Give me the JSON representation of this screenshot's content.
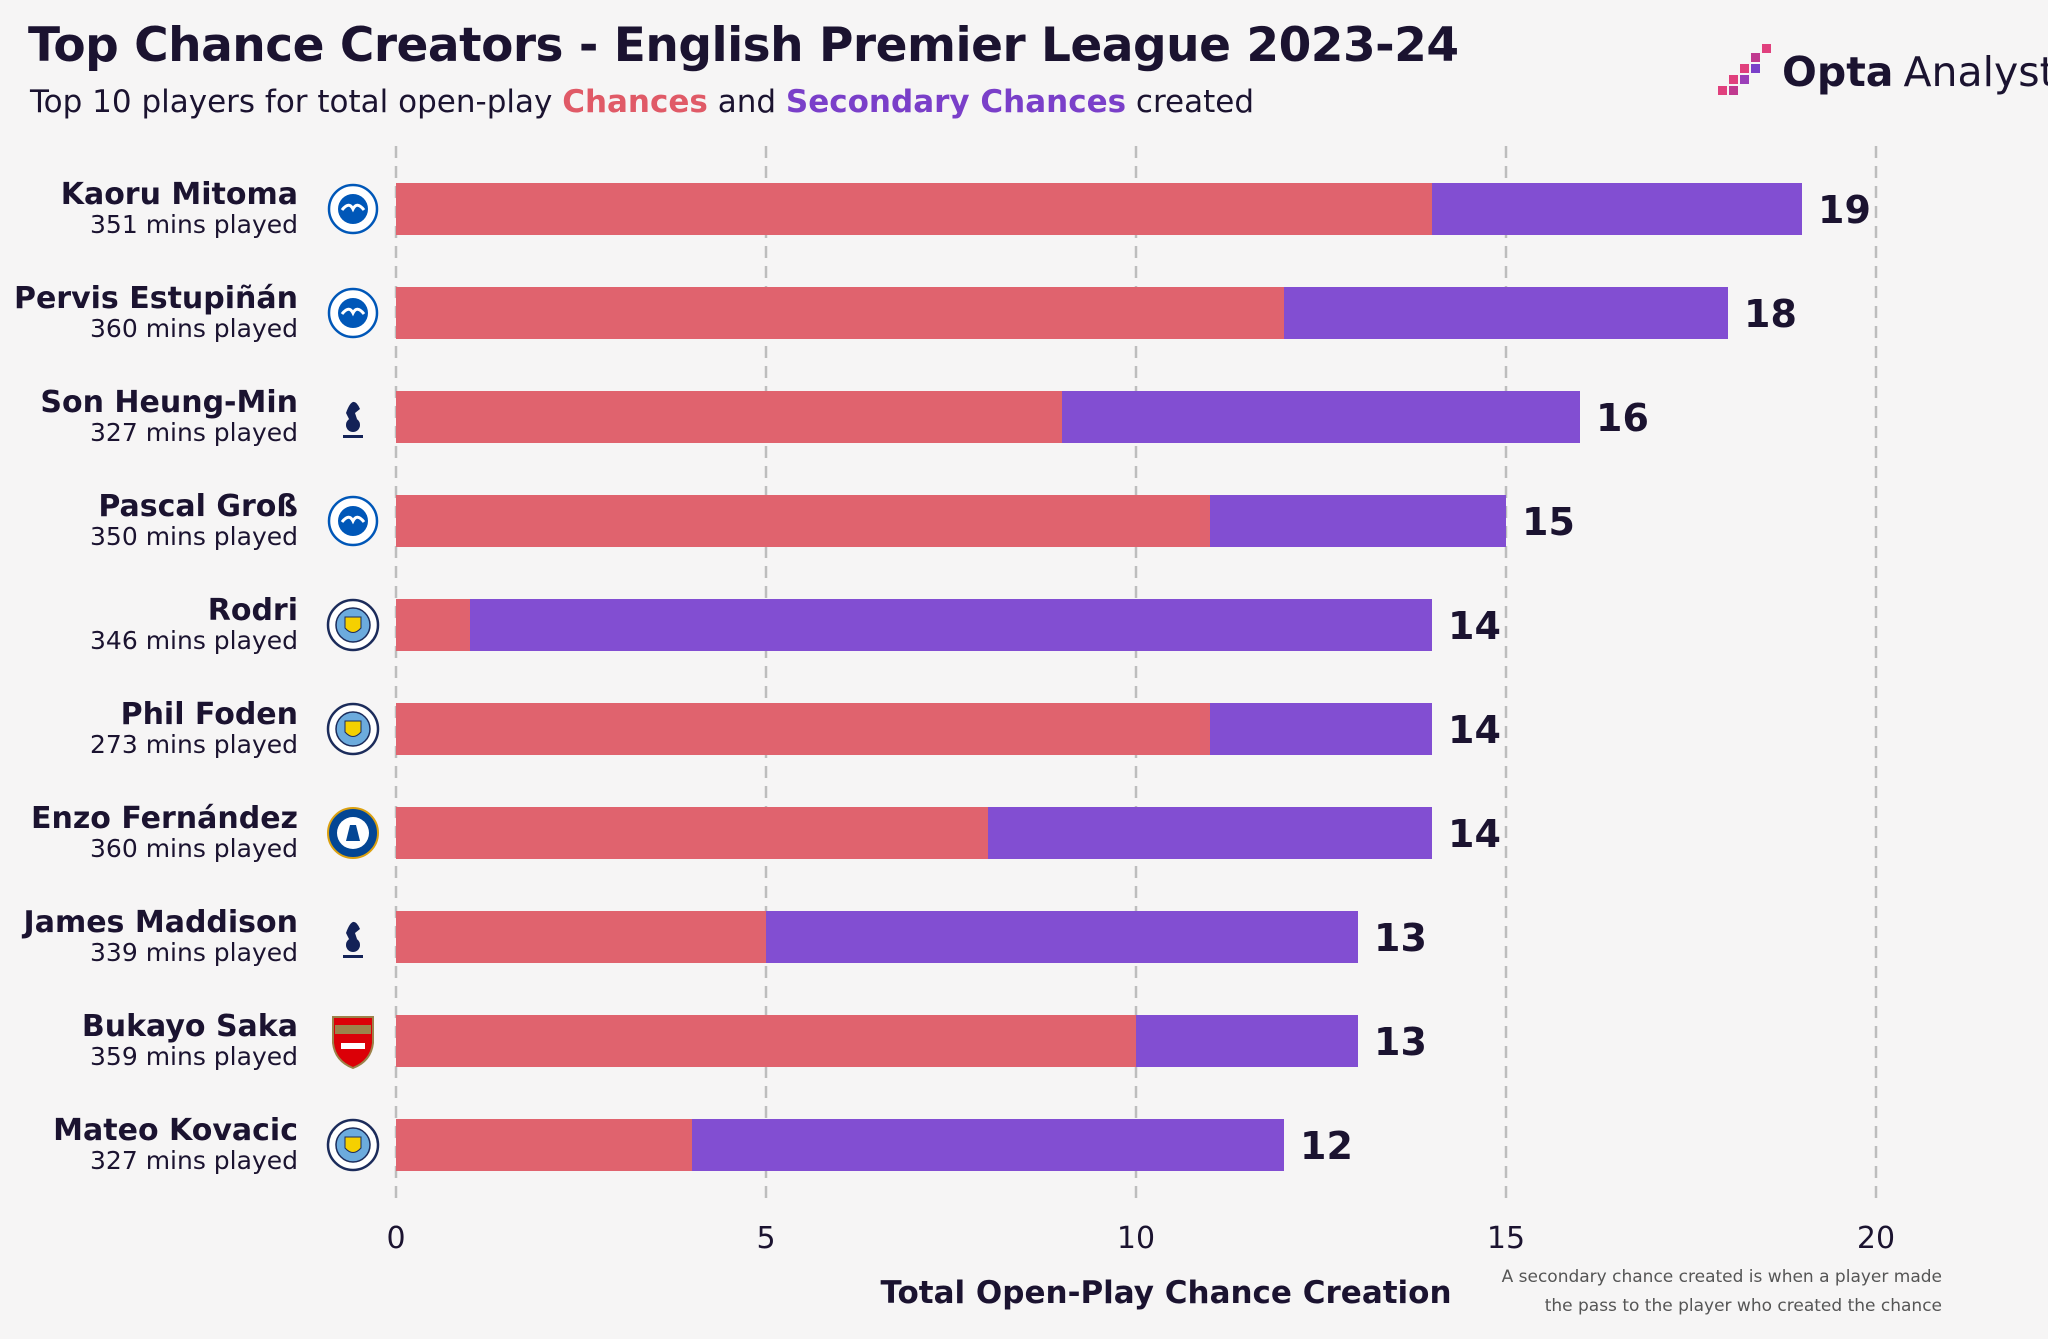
{
  "header": {
    "title": "Top Chance Creators - English Premier League 2023-24",
    "subtitle_prefix": "Top 10 players for total open-play",
    "subtitle_chances": "Chances",
    "subtitle_and": "and",
    "subtitle_secondary": "Secondary Chances",
    "subtitle_suffix": "created"
  },
  "logo": {
    "brand": "Opta",
    "brand2": "Analyst"
  },
  "footnote": {
    "line1": "A secondary chance created is when a player made",
    "line2": "the pass to the player who created the chance"
  },
  "colors": {
    "chances": "#e0636e",
    "secondary": "#824ed2",
    "text": "#1b1330",
    "grid": "#bdbdbd"
  },
  "chart_data": {
    "type": "bar",
    "orientation": "horizontal",
    "stacked": true,
    "title": "Top Chance Creators - English Premier League 2023-24",
    "xlabel": "Total Open-Play Chance Creation",
    "xlim": [
      0,
      20
    ],
    "xticks": [
      0,
      5,
      10,
      15,
      20
    ],
    "grid": "vertical dashed",
    "categories": [
      "Kaoru Mitoma",
      "Pervis Estupiñán",
      "Son Heung-Min",
      "Pascal Groß",
      "Rodri",
      "Phil Foden",
      "Enzo Fernández",
      "James Maddison",
      "Bukayo Saka",
      "Mateo Kovacic"
    ],
    "minutes": [
      "351 mins played",
      "360 mins played",
      "327 mins played",
      "350 mins played",
      "346 mins played",
      "273 mins played",
      "360 mins played",
      "339 mins played",
      "359 mins played",
      "327 mins played"
    ],
    "clubs": [
      "brighton",
      "brighton",
      "tottenham",
      "brighton",
      "man-city",
      "man-city",
      "chelsea",
      "tottenham",
      "arsenal",
      "man-city"
    ],
    "series": [
      {
        "name": "Chances",
        "values": [
          14,
          12,
          9,
          11,
          1,
          11,
          8,
          5,
          10,
          4
        ]
      },
      {
        "name": "Secondary Chances",
        "values": [
          5,
          6,
          7,
          4,
          13,
          3,
          6,
          8,
          3,
          8
        ]
      }
    ],
    "totals": [
      19,
      18,
      16,
      15,
      14,
      14,
      14,
      13,
      13,
      12
    ]
  }
}
